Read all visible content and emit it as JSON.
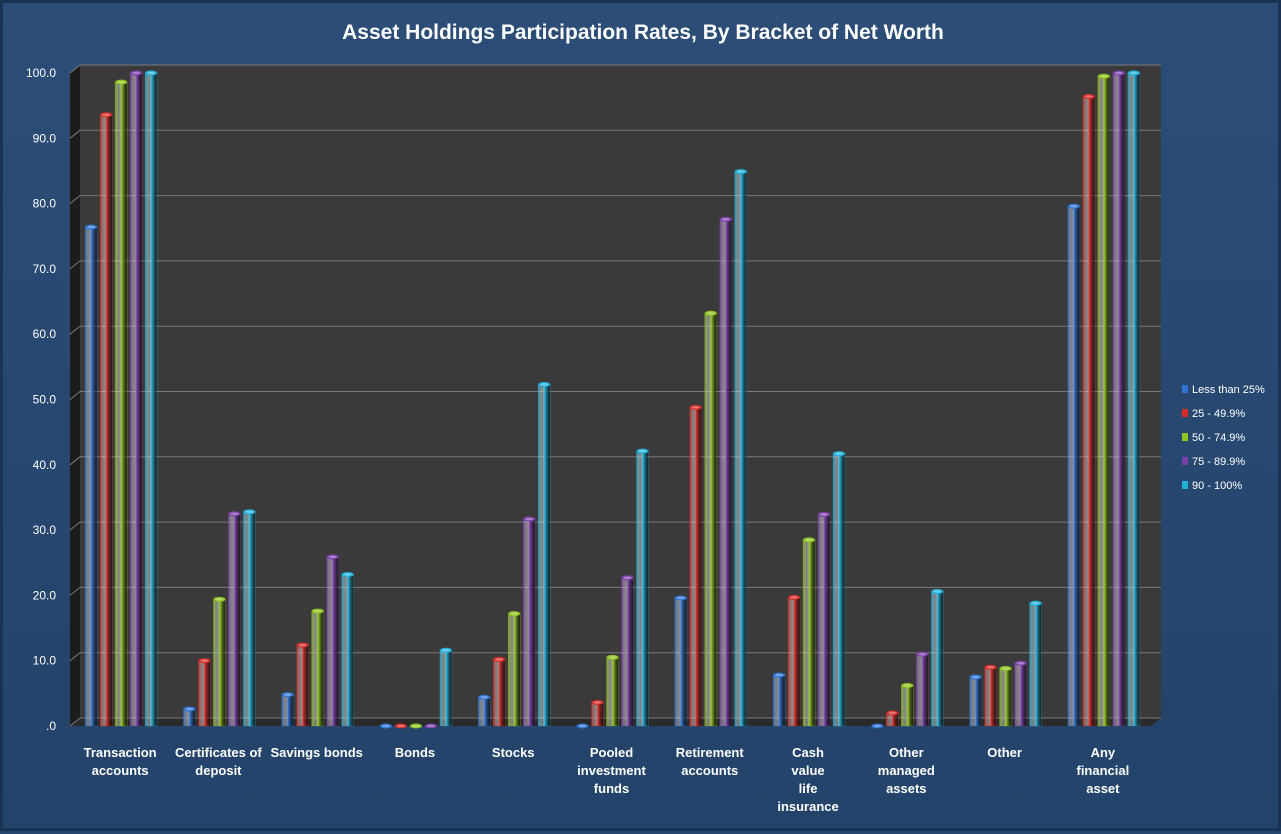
{
  "chart_data": {
    "type": "bar",
    "title": "Asset Holdings Participation Rates, By Bracket of Net Worth",
    "xlabel": "",
    "ylabel": "",
    "ylim": [
      0,
      100
    ],
    "yticks": [
      0,
      10,
      20,
      30,
      40,
      50,
      60,
      70,
      80,
      90,
      100
    ],
    "ytick_labels": [
      ".0",
      "10.0",
      "20.0",
      "30.0",
      "40.0",
      "50.0",
      "60.0",
      "70.0",
      "80.0",
      "90.0",
      "100.0"
    ],
    "grid": true,
    "legend_position": "right",
    "categories": [
      [
        "Transaction",
        "accounts"
      ],
      [
        "Certificates of",
        "deposit"
      ],
      [
        "Savings bonds"
      ],
      [
        "Bonds"
      ],
      [
        "Stocks"
      ],
      [
        "Pooled",
        "investment",
        "funds"
      ],
      [
        "Retirement",
        "accounts"
      ],
      [
        "Cash",
        "value",
        "life",
        "insurance"
      ],
      [
        "Other",
        "managed",
        "assets"
      ],
      [
        "Other"
      ],
      [
        "Any",
        "financial",
        "asset"
      ]
    ],
    "series": [
      {
        "name": "Less than 25%",
        "color": "#2f74d4",
        "values": [
          76.4,
          2.6,
          4.8,
          0.0,
          4.4,
          0.0,
          19.6,
          7.8,
          0.0,
          7.5,
          79.6
        ]
      },
      {
        "name": "25 - 49.9%",
        "color": "#d62c27",
        "values": [
          93.6,
          10.0,
          12.4,
          0.0,
          10.2,
          3.6,
          48.8,
          19.7,
          2.0,
          9.0,
          96.4
        ]
      },
      {
        "name": "50 - 74.9%",
        "color": "#8fc31f",
        "values": [
          98.6,
          19.4,
          17.6,
          0.0,
          17.2,
          10.5,
          63.2,
          28.5,
          6.2,
          8.8,
          99.5
        ]
      },
      {
        "name": "75 - 89.9%",
        "color": "#7e40ac",
        "values": [
          100.0,
          32.5,
          25.9,
          0.0,
          31.7,
          22.7,
          77.6,
          32.4,
          11.0,
          9.6,
          100.0
        ]
      },
      {
        "name": "90 - 100%",
        "color": "#21b2dc",
        "values": [
          100.0,
          32.8,
          23.2,
          11.6,
          52.3,
          42.1,
          84.9,
          41.7,
          20.6,
          18.8,
          100.0
        ]
      }
    ]
  }
}
